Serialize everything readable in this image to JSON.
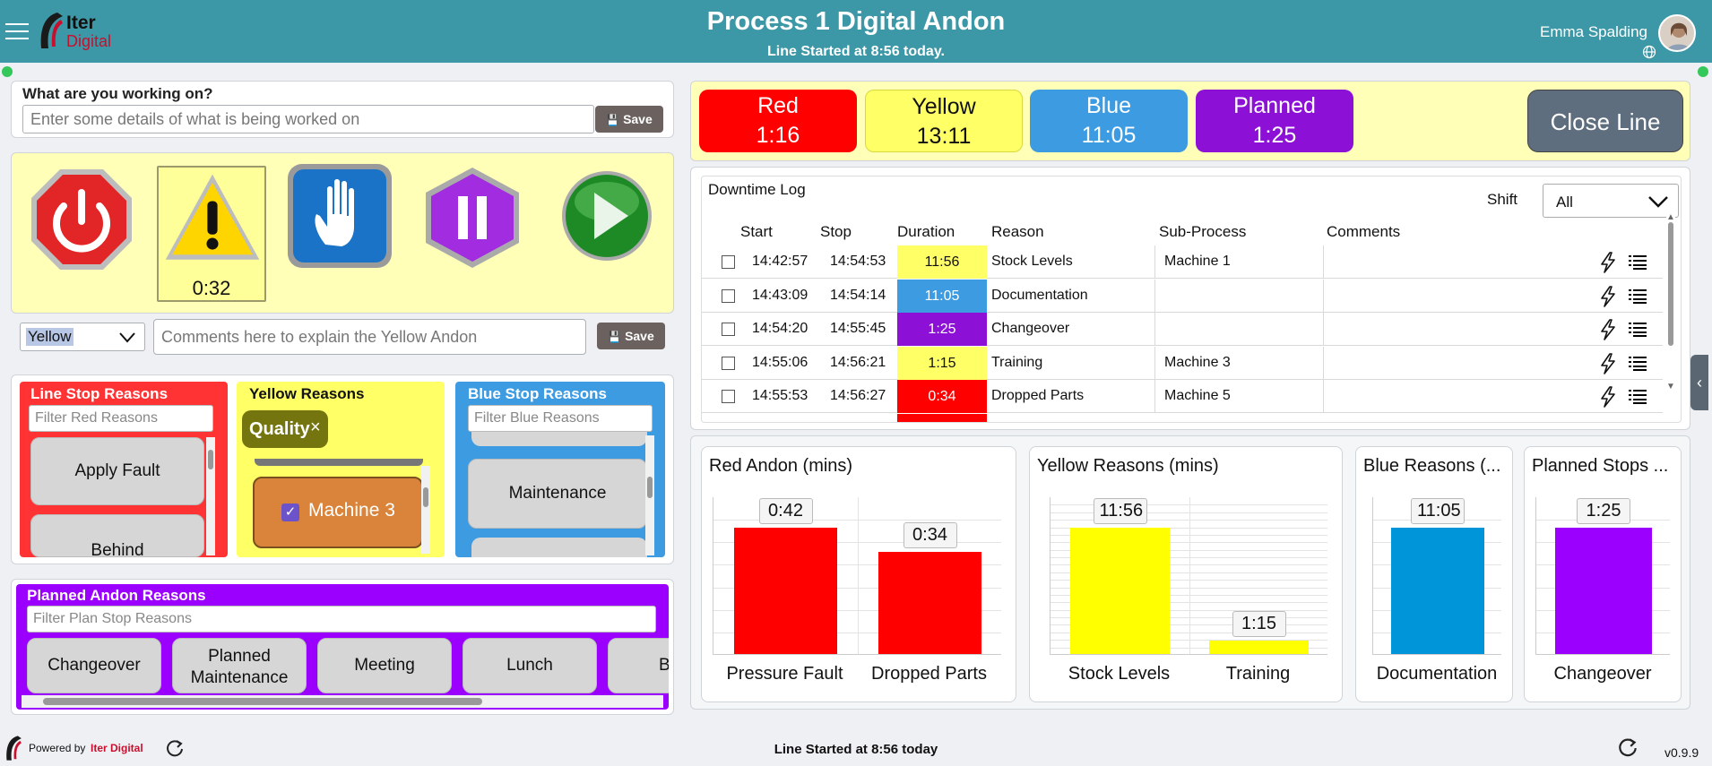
{
  "header": {
    "logo_text_1": "Iter",
    "logo_text_2": "Digital",
    "title": "Process 1 Digital Andon",
    "subtitle": "Line Started at 8:56 today.",
    "user_name": "Emma Spalding"
  },
  "work": {
    "label": "What are you working on?",
    "placeholder": "Enter some details of what is being worked on",
    "save_label": "Save"
  },
  "andons": {
    "yellow_timer": "0:32",
    "selected_type": "Yellow",
    "comment_placeholder": "Comments here to explain the Yellow Andon",
    "save_label": "Save"
  },
  "totals": [
    {
      "label": "Red",
      "value": "1:16",
      "color": "#ff0000"
    },
    {
      "label": "Yellow",
      "value": "13:11",
      "color": "#ffff66"
    },
    {
      "label": "Blue",
      "value": "11:05",
      "color": "#3d9be2"
    },
    {
      "label": "Planned",
      "value": "1:25",
      "color": "#8c10d6"
    }
  ],
  "close_line_label": "Close Line",
  "downtime": {
    "title": "Downtime Log",
    "shift_label": "Shift",
    "shift_value": "All",
    "columns": [
      "Start",
      "Stop",
      "Duration",
      "Reason",
      "Sub-Process",
      "Comments"
    ],
    "rows": [
      {
        "start": "14:42:57",
        "stop": "14:54:53",
        "duration": "11:56",
        "reason": "Stock Levels",
        "sub": "Machine 1",
        "color": "#ffff66"
      },
      {
        "start": "14:43:09",
        "stop": "14:54:14",
        "duration": "11:05",
        "reason": "Documentation",
        "sub": "",
        "color": "#3d9be2"
      },
      {
        "start": "14:54:20",
        "stop": "14:55:45",
        "duration": "1:25",
        "reason": "Changeover",
        "sub": "",
        "color": "#8c10d6"
      },
      {
        "start": "14:55:06",
        "stop": "14:56:21",
        "duration": "1:15",
        "reason": "Training",
        "sub": "Machine 3",
        "color": "#ffff66"
      },
      {
        "start": "14:55:53",
        "stop": "14:56:27",
        "duration": "0:34",
        "reason": "Dropped Parts",
        "sub": "Machine 5",
        "color": "#ff0000"
      }
    ]
  },
  "red_reasons": {
    "title": "Line Stop Reasons",
    "filter_placeholder": "Filter Red Reasons",
    "items": [
      "Apply Fault",
      "Behind"
    ]
  },
  "yellow_reasons": {
    "title": "Yellow Reasons",
    "tag": "Quality",
    "items": [
      "Machine 3"
    ]
  },
  "blue_reasons": {
    "title": "Blue Stop Reasons",
    "filter_placeholder": "Filter Blue Reasons",
    "items": [
      "Maintenance"
    ]
  },
  "planned_reasons": {
    "title": "Planned Andon Reasons",
    "filter_placeholder": "Filter Plan Stop Reasons",
    "items": [
      "Changeover",
      "Planned Maintenance",
      "Meeting",
      "Lunch",
      "B"
    ]
  },
  "charts": [
    {
      "title": "Red Andon (mins)"
    },
    {
      "title": "Yellow Reasons (mins)"
    },
    {
      "title": "Blue Reasons (..."
    },
    {
      "title": "Planned Stops ..."
    }
  ],
  "chart_data": [
    {
      "type": "bar",
      "title": "Red Andon (mins)",
      "categories": [
        "Pressure Fault",
        "Dropped Parts"
      ],
      "values": [
        0.7,
        0.567
      ],
      "labels": [
        "0:42",
        "0:34"
      ],
      "color": "#ff0000",
      "grid": true
    },
    {
      "type": "bar",
      "title": "Yellow Reasons (mins)",
      "categories": [
        "Stock Levels",
        "Training"
      ],
      "values": [
        11.933,
        1.25
      ],
      "labels": [
        "11:56",
        "1:15"
      ],
      "color": "#ffff00",
      "grid": true
    },
    {
      "type": "bar",
      "title": "Blue Reasons (...",
      "categories": [
        "Documentation"
      ],
      "values": [
        11.083
      ],
      "labels": [
        "11:05"
      ],
      "color": "#0094d9",
      "grid": true
    },
    {
      "type": "bar",
      "title": "Planned Stops ...",
      "categories": [
        "Changeover"
      ],
      "values": [
        1.417
      ],
      "labels": [
        "1:25"
      ],
      "color": "#9b00ff",
      "grid": true
    }
  ],
  "footer": {
    "powered_by": "Powered by",
    "brand": "Iter Digital",
    "line_status": "Line Started at 8:56 today",
    "version": "v0.9.9"
  }
}
